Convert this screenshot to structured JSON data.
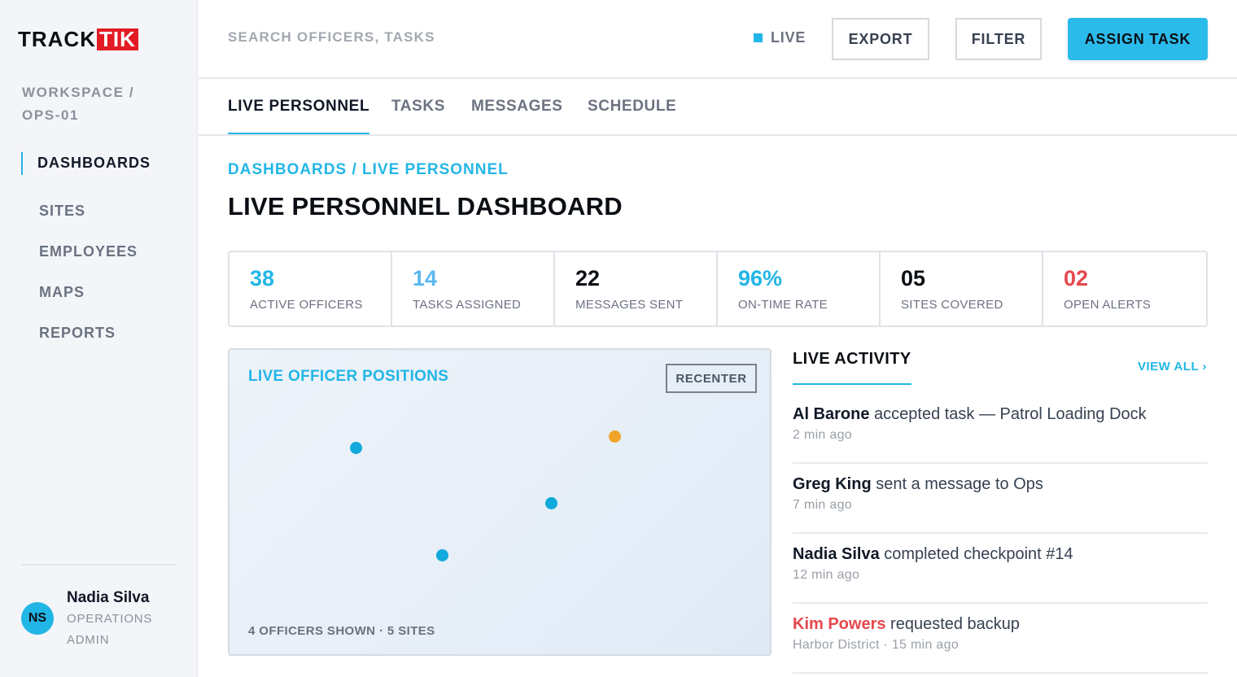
{
  "brand": {
    "track": "TRACK",
    "tik": "TIK"
  },
  "workspace": "WORKSPACE / OPS-01",
  "sidebar": {
    "items": [
      {
        "label": "DASHBOARDS",
        "active": true
      },
      {
        "label": "SITES"
      },
      {
        "label": "EMPLOYEES"
      },
      {
        "label": "MAPS"
      },
      {
        "label": "REPORTS"
      }
    ]
  },
  "user": {
    "initials": "NS",
    "name": "Nadia Silva",
    "role": "OPERATIONS ADMIN"
  },
  "topbar": {
    "search_placeholder": "SEARCH OFFICERS, TASKS",
    "live_label": "LIVE",
    "export_label": "EXPORT",
    "filter_label": "FILTER",
    "assign_label": "ASSIGN TASK"
  },
  "tabs": [
    {
      "label": "LIVE PERSONNEL",
      "active": true
    },
    {
      "label": "TASKS"
    },
    {
      "label": "MESSAGES"
    },
    {
      "label": "SCHEDULE"
    }
  ],
  "breadcrumb": "DASHBOARDS / LIVE PERSONNEL",
  "page_title": "LIVE PERSONNEL DASHBOARD",
  "stats": [
    {
      "value": "38",
      "label": "ACTIVE OFFICERS",
      "color": "#22b6e6"
    },
    {
      "value": "14",
      "label": "TASKS ASSIGNED",
      "color": "#5bb8f0"
    },
    {
      "value": "22",
      "label": "MESSAGES SENT",
      "color": "#0b0f14"
    },
    {
      "value": "96%",
      "label": "ON-TIME RATE",
      "color": "#22b6e6"
    },
    {
      "value": "05",
      "label": "SITES COVERED",
      "color": "#0b0f14"
    },
    {
      "value": "02",
      "label": "OPEN ALERTS",
      "color": "#e5484d"
    }
  ],
  "map": {
    "title": "LIVE OFFICER POSITIONS",
    "recenter_label": "RECENTER",
    "footer": "4 OFFICERS SHOWN · 5 SITES",
    "pin_colors": {
      "normal": "#11a9dc",
      "warning": "#f0a52a"
    }
  },
  "activity": {
    "title": "LIVE ACTIVITY",
    "view_all": "VIEW ALL ›",
    "items": [
      {
        "name": "Al Barone",
        "text": " accepted task — Patrol Loading Dock",
        "meta": "2 min ago"
      },
      {
        "name": "Greg King",
        "text": " sent a message to Ops",
        "meta": "7 min ago"
      },
      {
        "name": "Nadia Silva",
        "text": " completed checkpoint #14",
        "meta": "12 min ago"
      },
      {
        "name": "Kim Powers",
        "text": " requested backup",
        "meta": "Harbor District · 15 min ago",
        "alert": true
      }
    ]
  },
  "colors": {
    "accent": "#22b6e6",
    "alert": "#e5484d",
    "brand_red": "#e31b23"
  }
}
